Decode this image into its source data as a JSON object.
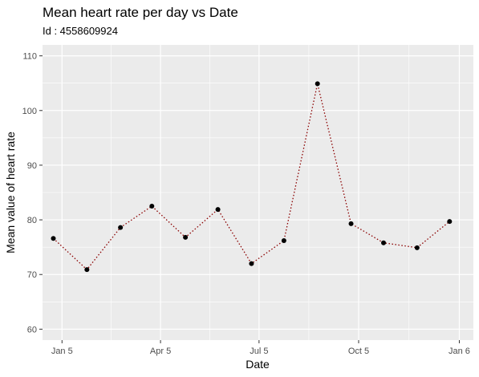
{
  "chart_data": {
    "type": "line",
    "title": "Mean heart rate per day vs Date",
    "subtitle": "Id : 4558609924",
    "xlabel": "Date",
    "ylabel": "Mean value of heart rate",
    "ylim": [
      58,
      112
    ],
    "yticks": [
      60,
      70,
      80,
      90,
      100,
      110
    ],
    "xlim": [
      "2015-12-18",
      "2017-01-19"
    ],
    "xticks": [
      {
        "date": "2016-01-05",
        "label": "Jan 5"
      },
      {
        "date": "2016-04-05",
        "label": "Apr 5"
      },
      {
        "date": "2016-07-05",
        "label": "Jul 5"
      },
      {
        "date": "2016-10-05",
        "label": "Oct 5"
      },
      {
        "date": "2017-01-06",
        "label": "Jan 6"
      }
    ],
    "grid": true,
    "series": [
      {
        "x": [
          "2015-12-28",
          "2016-01-28",
          "2016-02-28",
          "2016-03-28",
          "2016-04-28",
          "2016-05-28",
          "2016-06-28",
          "2016-07-28",
          "2016-08-28",
          "2016-09-28",
          "2016-10-28",
          "2016-11-28",
          "2016-12-28"
        ],
        "y": [
          76.6,
          70.9,
          78.6,
          82.5,
          76.8,
          81.9,
          72.0,
          76.2,
          104.9,
          79.3,
          75.8,
          74.9,
          79.7
        ]
      }
    ],
    "colors": {
      "panel": "#ebebeb",
      "grid": "#ffffff",
      "line": "#8b0000",
      "point": "#000000"
    }
  }
}
